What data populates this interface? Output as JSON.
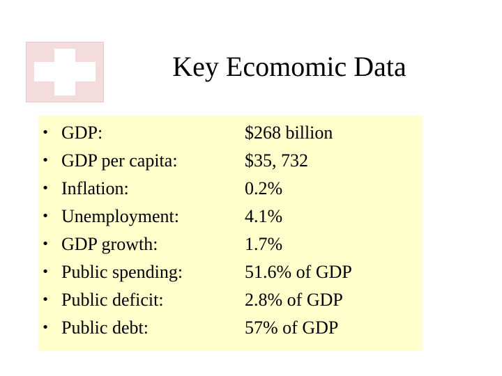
{
  "slide": {
    "title": "Key Ecomomic Data",
    "flag_icon": "swiss-cross-icon",
    "colors": {
      "flag_background": "#f4dcdc",
      "flag_cross": "#ffffff",
      "panel_background": "#ffffcc",
      "text": "#000000"
    },
    "bullet": "•",
    "rows": [
      {
        "label": "GDP:",
        "value": "$268 billion"
      },
      {
        "label": "GDP per capita:",
        "value": "$35, 732"
      },
      {
        "label": "Inflation:",
        "value": "0.2%"
      },
      {
        "label": "Unemployment:",
        "value": "4.1%"
      },
      {
        "label": "GDP growth:",
        "value": "1.7%"
      },
      {
        "label": "Public spending:",
        "value": "51.6% of GDP"
      },
      {
        "label": "Public deficit:",
        "value": "2.8% of GDP"
      },
      {
        "label": "Public debt:",
        "value": "57% of GDP"
      }
    ]
  }
}
